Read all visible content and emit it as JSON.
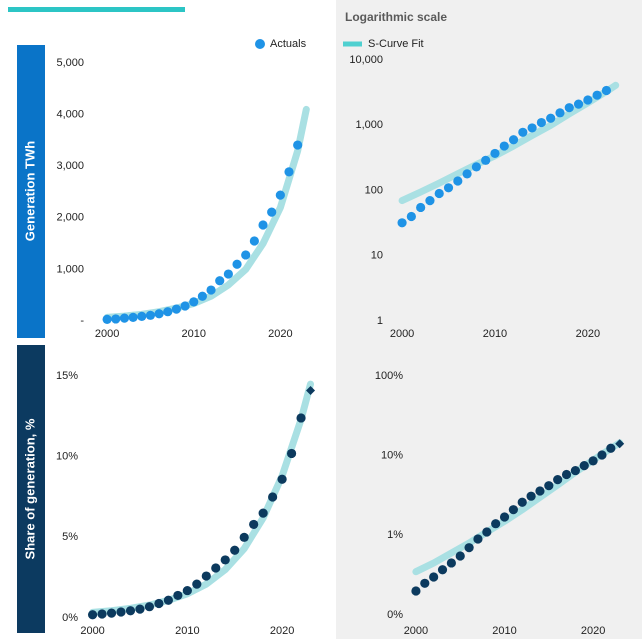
{
  "title": "Logarithmic scale",
  "left_labels": [
    "Generation TWh",
    "Share of generation, %"
  ],
  "chart_data": [
    {
      "type": "scatter",
      "xlim": [
        1998.6,
        2024
      ],
      "xticks": [
        2000,
        2010,
        2020
      ],
      "ylim": [
        0,
        5000
      ],
      "log_y": false,
      "yticks": [
        {
          "value": 0,
          "label": "-"
        },
        {
          "value": 1000,
          "label": "1,000"
        },
        {
          "value": 2000,
          "label": "2,000"
        },
        {
          "value": 3000,
          "label": "3,000"
        },
        {
          "value": 4000,
          "label": "4,000"
        },
        {
          "value": 5000,
          "label": "5,000"
        }
      ],
      "series": [
        {
          "name": "S-Curve Fit",
          "type": "line",
          "color": "#a9e0e3",
          "x": [
            2000,
            2002,
            2004,
            2006,
            2008,
            2010,
            2012,
            2014,
            2016,
            2018,
            2020,
            2022,
            2023
          ],
          "values": [
            70,
            95,
            130,
            180,
            250,
            340,
            480,
            700,
            1000,
            1500,
            2200,
            3300,
            4100
          ]
        },
        {
          "name": "Actuals",
          "type": "marker",
          "marker": "circle",
          "color": "#1f93e6",
          "x": [
            2000,
            2001,
            2002,
            2003,
            2004,
            2005,
            2006,
            2007,
            2008,
            2009,
            2010,
            2011,
            2012,
            2013,
            2014,
            2015,
            2016,
            2017,
            2018,
            2019,
            2020,
            2021,
            2022
          ],
          "values": [
            32,
            40,
            55,
            70,
            90,
            110,
            140,
            180,
            230,
            290,
            370,
            480,
            600,
            780,
            910,
            1100,
            1280,
            1550,
            1860,
            2110,
            2440,
            2890,
            3410
          ]
        }
      ]
    },
    {
      "type": "scatter",
      "xlim": [
        1998.7,
        2024
      ],
      "xticks": [
        2000,
        2010,
        2020
      ],
      "ylim": [
        1,
        10000
      ],
      "log_y": true,
      "yticks": [
        1,
        10,
        100,
        {
          "value": 1000,
          "label": "1,000"
        },
        {
          "value": 10000,
          "label": "10,000"
        }
      ],
      "series": [
        {
          "type": "line",
          "color": "#a9e0e3",
          "x": [
            2000,
            2002,
            2004,
            2006,
            2008,
            2010,
            2012,
            2014,
            2016,
            2018,
            2020,
            2022,
            2023
          ],
          "values": [
            70,
            95,
            130,
            180,
            250,
            340,
            480,
            700,
            1000,
            1500,
            2200,
            3300,
            4100
          ]
        },
        {
          "type": "marker",
          "marker": "circle",
          "color": "#1f93e6",
          "x": [
            2000,
            2001,
            2002,
            2003,
            2004,
            2005,
            2006,
            2007,
            2008,
            2009,
            2010,
            2011,
            2012,
            2013,
            2014,
            2015,
            2016,
            2017,
            2018,
            2019,
            2020,
            2021,
            2022
          ],
          "values": [
            32,
            40,
            55,
            70,
            90,
            110,
            140,
            180,
            230,
            290,
            370,
            480,
            600,
            780,
            910,
            1100,
            1280,
            1550,
            1860,
            2110,
            2440,
            2890,
            3410
          ]
        }
      ]
    },
    {
      "type": "scatter",
      "xlim": [
        1999.2,
        2024
      ],
      "xticks": [
        2000,
        2010,
        2020
      ],
      "ylim": [
        0,
        15
      ],
      "log_y": false,
      "yticks": [
        {
          "value": 0,
          "label": "0%"
        },
        {
          "value": 5,
          "label": "5%"
        },
        {
          "value": 10,
          "label": "10%"
        },
        {
          "value": 15,
          "label": "15%"
        }
      ],
      "series": [
        {
          "type": "line",
          "color": "#a9e0e3",
          "x": [
            2000,
            2002,
            2004,
            2006,
            2008,
            2010,
            2012,
            2014,
            2016,
            2018,
            2020,
            2022,
            2023
          ],
          "values": [
            0.35,
            0.45,
            0.6,
            0.8,
            1.1,
            1.5,
            2.1,
            3.0,
            4.3,
            6.2,
            8.8,
            12.3,
            14.5
          ]
        },
        {
          "type": "marker",
          "marker": "circle",
          "color": "#0c3a5e",
          "x": [
            2000,
            2001,
            2002,
            2003,
            2004,
            2005,
            2006,
            2007,
            2008,
            2009,
            2010,
            2011,
            2012,
            2013,
            2014,
            2015,
            2016,
            2017,
            2018,
            2019,
            2020,
            2021,
            2022
          ],
          "values": [
            0.2,
            0.25,
            0.3,
            0.37,
            0.45,
            0.55,
            0.7,
            0.9,
            1.1,
            1.4,
            1.7,
            2.1,
            2.6,
            3.1,
            3.6,
            4.2,
            5.0,
            5.8,
            6.5,
            7.5,
            8.6,
            10.2,
            12.4
          ]
        },
        {
          "type": "marker",
          "marker": "diamond",
          "color": "#0c3a5e",
          "x": [
            2023
          ],
          "values": [
            14.1
          ]
        }
      ]
    },
    {
      "type": "scatter",
      "xlim": [
        1998.2,
        2023.6
      ],
      "xticks": [
        2000,
        2010,
        2020
      ],
      "ylim": [
        0.1,
        100
      ],
      "log_y": true,
      "yticks": [
        {
          "value": 0.1,
          "label": "0%"
        },
        {
          "value": 1,
          "label": "1%"
        },
        {
          "value": 10,
          "label": "10%"
        },
        {
          "value": 100,
          "label": "100%"
        }
      ],
      "series": [
        {
          "type": "line",
          "color": "#a9e0e3",
          "x": [
            2000,
            2002,
            2004,
            2006,
            2008,
            2010,
            2012,
            2014,
            2016,
            2018,
            2020,
            2022,
            2023
          ],
          "values": [
            0.35,
            0.45,
            0.6,
            0.8,
            1.1,
            1.5,
            2.1,
            3.0,
            4.3,
            6.2,
            8.8,
            12.3,
            14.5
          ]
        },
        {
          "type": "marker",
          "marker": "circle",
          "color": "#0c3a5e",
          "x": [
            2000,
            2001,
            2002,
            2003,
            2004,
            2005,
            2006,
            2007,
            2008,
            2009,
            2010,
            2011,
            2012,
            2013,
            2014,
            2015,
            2016,
            2017,
            2018,
            2019,
            2020,
            2021,
            2022
          ],
          "values": [
            0.2,
            0.25,
            0.3,
            0.37,
            0.45,
            0.55,
            0.7,
            0.9,
            1.1,
            1.4,
            1.7,
            2.1,
            2.6,
            3.1,
            3.6,
            4.2,
            5.0,
            5.8,
            6.5,
            7.5,
            8.6,
            10.2,
            12.4
          ]
        },
        {
          "type": "marker",
          "marker": "diamond",
          "color": "#0c3a5e",
          "x": [
            2023
          ],
          "values": [
            14.1
          ]
        }
      ]
    }
  ]
}
